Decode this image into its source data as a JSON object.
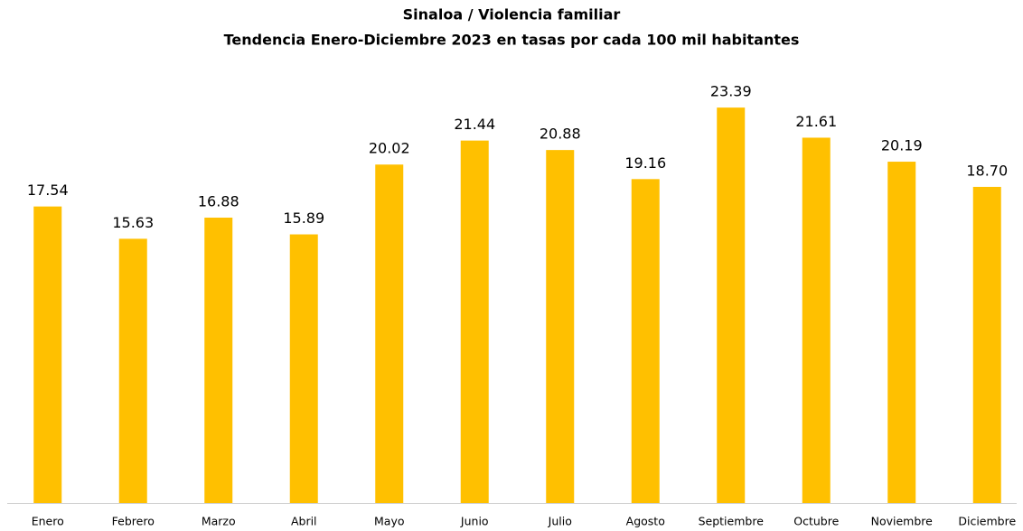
{
  "chart_data": {
    "type": "bar",
    "title": "Sinaloa / Violencia familiar",
    "subtitle": "Tendencia Enero-Diciembre 2023 en tasas por cada 100 mil habitantes",
    "categories": [
      "Enero",
      "Febrero",
      "Marzo",
      "Abril",
      "Mayo",
      "Junio",
      "Julio",
      "Agosto",
      "Septiembre",
      "Octubre",
      "Noviembre",
      "Diciembre"
    ],
    "values": [
      17.54,
      15.63,
      16.88,
      15.89,
      20.02,
      21.44,
      20.88,
      19.16,
      23.39,
      21.61,
      20.19,
      18.7
    ],
    "value_labels": [
      "17.54",
      "15.63",
      "16.88",
      "15.89",
      "20.02",
      "21.44",
      "20.88",
      "19.16",
      "23.39",
      "21.61",
      "20.19",
      "18.70"
    ],
    "color": "#ffc000",
    "ylim": [
      0,
      25
    ]
  }
}
